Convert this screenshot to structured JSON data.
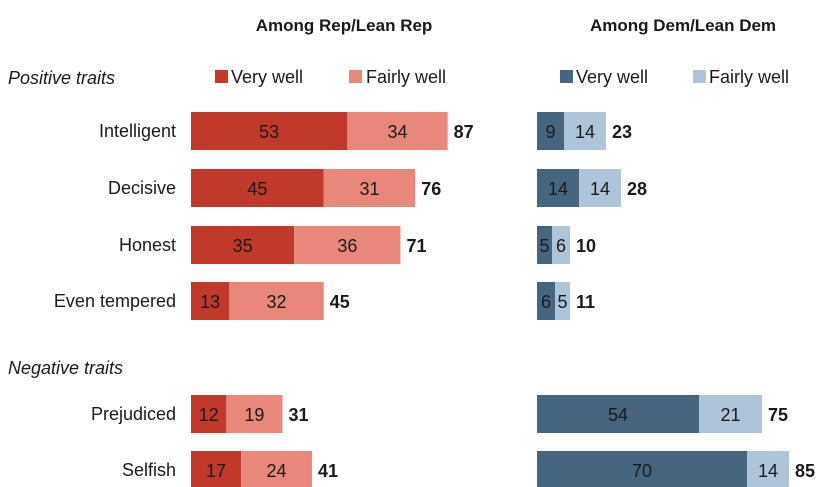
{
  "colors": {
    "rep_very": "#c0392b",
    "rep_fairly": "#e8887a",
    "dem_very": "#46667f",
    "dem_fairly": "#aec4d8",
    "label_dark": "#1a1a1a"
  },
  "headers": {
    "rep": "Among Rep/Lean Rep",
    "dem": "Among Dem/Lean Dem"
  },
  "sections": {
    "positive": "Positive traits",
    "negative": "Negative traits"
  },
  "legend": {
    "very_well": "Very well",
    "fairly_well": "Fairly well"
  },
  "chart_data": {
    "type": "bar",
    "orientation": "horizontal",
    "stacked": true,
    "categories": [
      "Intelligent",
      "Decisive",
      "Honest",
      "Even tempered",
      "Prejudiced",
      "Selfish"
    ],
    "groups": [
      {
        "name": "Among Rep/Lean Rep",
        "series": [
          {
            "name": "Very well",
            "values": [
              53,
              45,
              35,
              13,
              12,
              17
            ]
          },
          {
            "name": "Fairly well",
            "values": [
              34,
              31,
              36,
              32,
              19,
              24
            ]
          }
        ],
        "totals": [
          87,
          76,
          71,
          45,
          31,
          41
        ]
      },
      {
        "name": "Among Dem/Lean Dem",
        "series": [
          {
            "name": "Very well",
            "values": [
              9,
              14,
              5,
              6,
              54,
              70
            ]
          },
          {
            "name": "Fairly well",
            "values": [
              14,
              14,
              6,
              5,
              21,
              14
            ]
          }
        ],
        "totals": [
          23,
          28,
          10,
          11,
          75,
          85
        ]
      }
    ],
    "xlim": [
      0,
      100
    ],
    "grid": false,
    "legend_position": "top"
  }
}
